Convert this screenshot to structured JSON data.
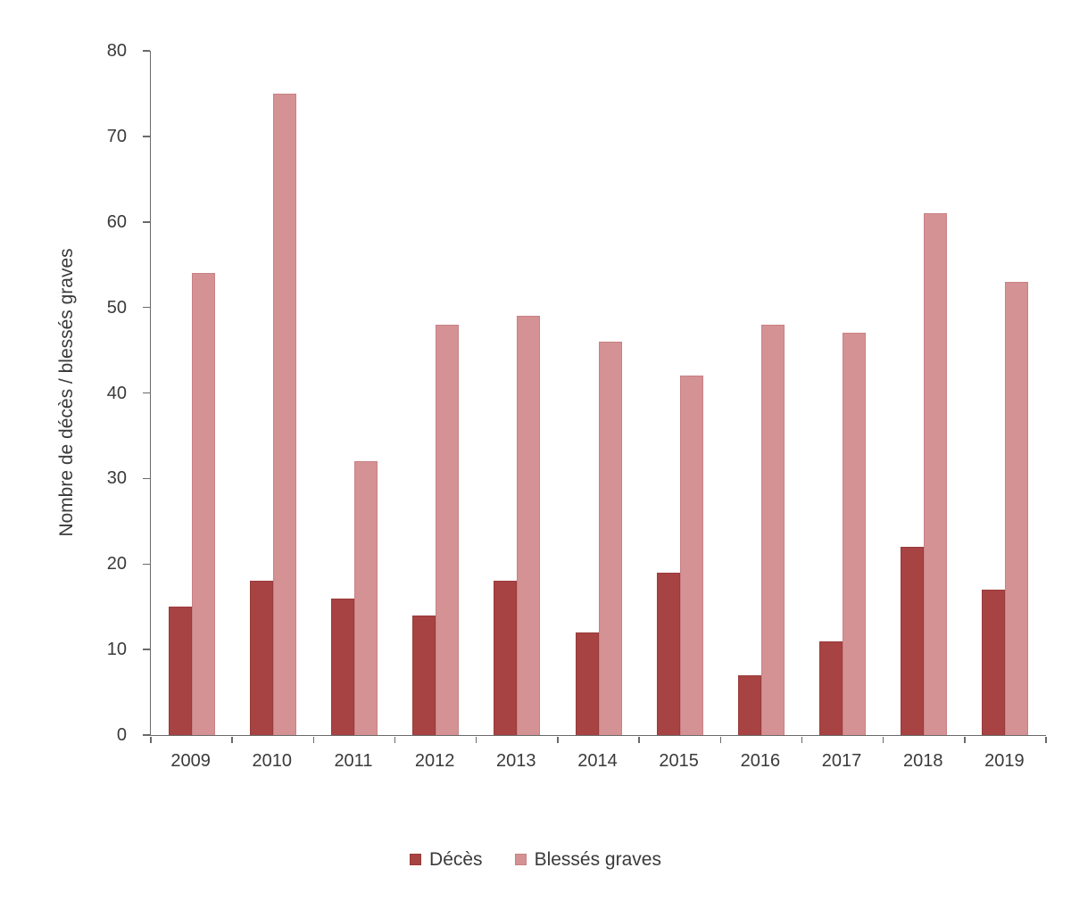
{
  "chart_data": {
    "type": "bar",
    "title": "",
    "xlabel": "",
    "ylabel": "Nombre de décès / blessés graves",
    "categories": [
      "2009",
      "2010",
      "2011",
      "2012",
      "2013",
      "2014",
      "2015",
      "2016",
      "2017",
      "2018",
      "2019"
    ],
    "series": [
      {
        "name": "Décès",
        "slug": "deces",
        "fill_color": "#A84343",
        "border_color": "#9A3A3A",
        "values": [
          15,
          18,
          16,
          14,
          18,
          12,
          19,
          7,
          11,
          22,
          17
        ]
      },
      {
        "name": "Blessés graves",
        "slug": "blesses-graves",
        "fill_color": "#D49294",
        "border_color": "#C98183",
        "values": [
          54,
          75,
          32,
          48,
          49,
          46,
          42,
          48,
          47,
          61,
          53
        ]
      }
    ],
    "ylim": [
      0,
      80
    ],
    "yticks": [
      0,
      10,
      20,
      30,
      40,
      50,
      60,
      70,
      80
    ],
    "grid": false,
    "legend_position": "bottom",
    "axis_line_color": "#6a6a6a",
    "text_color": "#3a3a3a",
    "background_color": "#ffffff"
  }
}
